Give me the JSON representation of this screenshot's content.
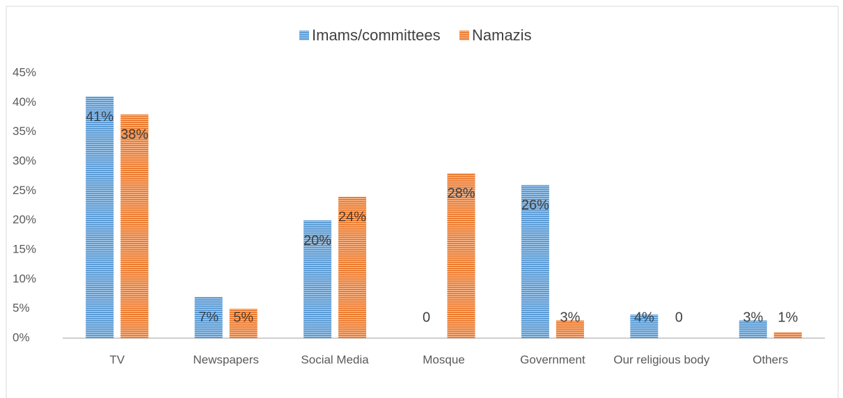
{
  "chart_data": {
    "type": "bar",
    "categories": [
      "TV",
      "Newspapers",
      "Social Media",
      "Mosque",
      "Government",
      "Our religious body",
      "Others"
    ],
    "series": [
      {
        "name": "Imams/committees",
        "color": "#5b9bd5",
        "values": [
          41,
          7,
          20,
          0,
          26,
          4,
          3
        ],
        "value_labels": [
          "41%",
          "7%",
          "20%",
          "0",
          "26%",
          "4%",
          "3%"
        ]
      },
      {
        "name": "Namazis",
        "color": "#ed7d31",
        "values": [
          38,
          5,
          24,
          28,
          3,
          0,
          1
        ],
        "value_labels": [
          "38%",
          "5%",
          "24%",
          "28%",
          "3%",
          "0",
          "1%"
        ]
      }
    ],
    "ylim": [
      0,
      45
    ],
    "yticks": [
      {
        "value": 0,
        "label": "0%"
      },
      {
        "value": 5,
        "label": "5%"
      },
      {
        "value": 10,
        "label": "10%"
      },
      {
        "value": 15,
        "label": "15%"
      },
      {
        "value": 20,
        "label": "20%"
      },
      {
        "value": 25,
        "label": "25%"
      },
      {
        "value": 30,
        "label": "30%"
      },
      {
        "value": 35,
        "label": "35%"
      },
      {
        "value": 40,
        "label": "40%"
      },
      {
        "value": 45,
        "label": "45%"
      }
    ],
    "legend": "top"
  }
}
